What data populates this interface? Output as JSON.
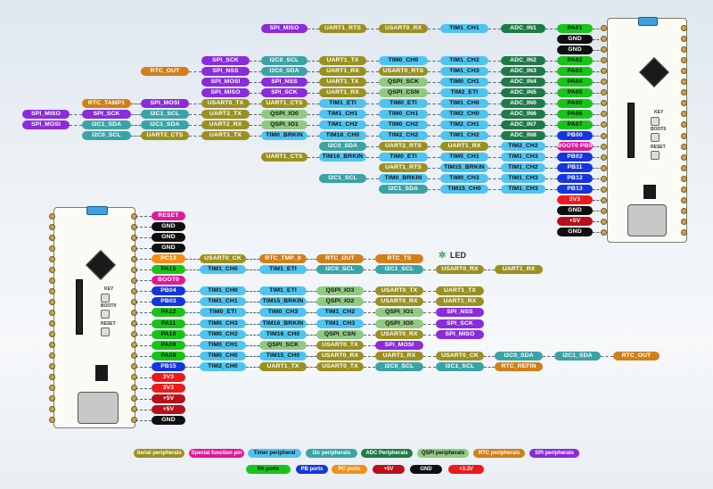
{
  "colors": {
    "serial": "#9a9020",
    "special": "#e0189a",
    "timer": "#4fc4f0",
    "i2c": "#3aa3a6",
    "adc": "#1f7a48",
    "qspi": "#8fca80",
    "rtc": "#d07f1a",
    "spi": "#8b2bdb",
    "pa": "#19c419",
    "pb": "#1535dd",
    "pc": "#f29015",
    "v5": "#b8101a",
    "gnd": "#0f0f0f",
    "v33": "#ec1a1a"
  },
  "board_top": {
    "name": "top-board",
    "button_labels": [
      "KEY",
      "BOOT0",
      "RESET"
    ]
  },
  "board_bottom": {
    "name": "bottom-board",
    "button_labels": [
      "KEY",
      "BOOT0",
      "RESET"
    ],
    "led_label": "LED"
  },
  "top_diagram": {
    "rows": [
      {
        "pin": {
          "text": "PA01",
          "kind": "pa"
        },
        "funcs": [
          {
            "text": "ADC_IN1",
            "kind": "adc"
          },
          {
            "text": "TIM1_CH1",
            "kind": "timer"
          },
          {
            "text": "USART0_RX",
            "kind": "serial"
          },
          {
            "text": "UART1_RTS",
            "kind": "serial"
          },
          {
            "text": "SPI_MISO",
            "kind": "spi"
          }
        ]
      },
      {
        "pin": {
          "text": "GND",
          "kind": "gnd"
        },
        "funcs": []
      },
      {
        "pin": {
          "text": "GND",
          "kind": "gnd"
        },
        "funcs": []
      },
      {
        "pin": {
          "text": "PA02",
          "kind": "pa"
        },
        "funcs": [
          {
            "text": "ADC_IN2",
            "kind": "adc"
          },
          {
            "text": "TIM1_CH2",
            "kind": "timer"
          },
          {
            "text": "TIM0_CH0",
            "kind": "timer"
          },
          {
            "text": "UART1_TX",
            "kind": "serial"
          },
          {
            "text": "I2C0_SCL",
            "kind": "i2c"
          },
          {
            "text": "SPI_SCK",
            "kind": "spi"
          }
        ]
      },
      {
        "pin": {
          "text": "PA03",
          "kind": "pa"
        },
        "funcs": [
          {
            "text": "ADC_IN3",
            "kind": "adc"
          },
          {
            "text": "TIM1_CH3",
            "kind": "timer"
          },
          {
            "text": "USART0_RTS",
            "kind": "serial"
          },
          {
            "text": "UART1_RX",
            "kind": "serial"
          },
          {
            "text": "I2C0_SDA",
            "kind": "i2c"
          },
          {
            "text": "SPI_NSS",
            "kind": "spi"
          },
          {
            "text": "RTC_OUT",
            "kind": "rtc"
          }
        ]
      },
      {
        "pin": {
          "text": "PA04",
          "kind": "pa"
        },
        "funcs": [
          {
            "text": "ADC_IN4",
            "kind": "adc"
          },
          {
            "text": "TIM0_CH1",
            "kind": "timer"
          },
          {
            "text": "QSPI_SCK",
            "kind": "qspi"
          },
          {
            "text": "UART1_TX",
            "kind": "serial"
          },
          {
            "text": "SPI_NSS",
            "kind": "spi"
          },
          {
            "text": "SPI_MOSI",
            "kind": "spi"
          }
        ]
      },
      {
        "pin": {
          "text": "PA05",
          "kind": "pa"
        },
        "funcs": [
          {
            "text": "ADC_IN5",
            "kind": "adc"
          },
          {
            "text": "TIM2_ETI",
            "kind": "timer"
          },
          {
            "text": "QSPI_CSN",
            "kind": "qspi"
          },
          {
            "text": "UART1_RX",
            "kind": "serial"
          },
          {
            "text": "SPI_SCK",
            "kind": "spi"
          },
          {
            "text": "SPI_MISO",
            "kind": "spi"
          }
        ]
      },
      {
        "pin": {
          "text": "PA00",
          "kind": "pa"
        },
        "funcs": [
          {
            "text": "ADC_IN0",
            "kind": "adc"
          },
          {
            "text": "TIM1_CH0",
            "kind": "timer"
          },
          {
            "text": "TIM0_ETI",
            "kind": "timer"
          },
          {
            "text": "TIM1_ETI",
            "kind": "timer"
          },
          {
            "text": "UART1_CTS",
            "kind": "serial"
          },
          {
            "text": "USART0_TX",
            "kind": "serial"
          },
          {
            "text": "SPI_MOSI",
            "kind": "spi"
          },
          {
            "text": "RTC_TAMP1",
            "kind": "rtc"
          }
        ]
      },
      {
        "pin": {
          "text": "PA06",
          "kind": "pa"
        },
        "funcs": [
          {
            "text": "ADC_IN6",
            "kind": "adc"
          },
          {
            "text": "TIM2_CH0",
            "kind": "timer"
          },
          {
            "text": "TIM0_CH1",
            "kind": "timer"
          },
          {
            "text": "TIM1_CH1",
            "kind": "timer"
          },
          {
            "text": "QSPI_IO0",
            "kind": "qspi"
          },
          {
            "text": "UART2_TX",
            "kind": "serial"
          },
          {
            "text": "I2C1_SCL",
            "kind": "i2c"
          },
          {
            "text": "SPI_SCK",
            "kind": "spi"
          },
          {
            "text": "SPI_MISO",
            "kind": "spi"
          }
        ]
      },
      {
        "pin": {
          "text": "PA07",
          "kind": "pa"
        },
        "funcs": [
          {
            "text": "ADC_IN7",
            "kind": "adc"
          },
          {
            "text": "TIM2_CH1",
            "kind": "timer"
          },
          {
            "text": "TIM0_CH2",
            "kind": "timer"
          },
          {
            "text": "TIM1_CH2",
            "kind": "timer"
          },
          {
            "text": "QSPI_IO1",
            "kind": "qspi"
          },
          {
            "text": "UART2_RX",
            "kind": "serial"
          },
          {
            "text": "I2C1_SDA",
            "kind": "i2c"
          },
          {
            "text": "I2C1_SDA",
            "kind": "i2c"
          },
          {
            "text": "SPI_MOSI",
            "kind": "spi"
          }
        ]
      },
      {
        "pin": {
          "text": "PB00",
          "kind": "pb"
        },
        "funcs": [
          {
            "text": "ADC_IN8",
            "kind": "adc"
          },
          {
            "text": "TIM1_CH2",
            "kind": "timer"
          },
          {
            "text": "TIM2_CH2",
            "kind": "timer"
          },
          {
            "text": "TIM16_CH0",
            "kind": "timer"
          },
          {
            "text": "TIM0_BRKIN",
            "kind": "timer"
          },
          {
            "text": "UART1_TX",
            "kind": "serial"
          },
          {
            "text": "UART2_CTS",
            "kind": "serial"
          },
          {
            "text": "I2C0_SCL",
            "kind": "i2c"
          }
        ]
      },
      {
        "pin": {
          "text": "BOOT0 PB01",
          "kind": "special"
        },
        "funcs": [
          {
            "text": "TIM2_CH2",
            "kind": "timer"
          },
          {
            "text": "UART1_RX",
            "kind": "serial"
          },
          {
            "text": "UART2_RTS",
            "kind": "serial"
          },
          {
            "text": "I2C0_SDA",
            "kind": "i2c"
          }
        ]
      },
      {
        "pin": {
          "text": "PB02",
          "kind": "pb"
        },
        "funcs": [
          {
            "text": "TIM1_CH3",
            "kind": "timer"
          },
          {
            "text": "TIM0_CH1",
            "kind": "timer"
          },
          {
            "text": "TIM0_ETI",
            "kind": "timer"
          },
          {
            "text": "TIM16_BRKIN",
            "kind": "timer"
          },
          {
            "text": "UART1_CTS",
            "kind": "serial"
          }
        ]
      },
      {
        "pin": {
          "text": "PB11",
          "kind": "pb"
        },
        "funcs": [
          {
            "text": "TIM1_CH2",
            "kind": "timer"
          },
          {
            "text": "TIM15_BRKIN",
            "kind": "timer"
          },
          {
            "text": "UART1_RTS",
            "kind": "serial"
          }
        ]
      },
      {
        "pin": {
          "text": "PB12",
          "kind": "pb"
        },
        "funcs": [
          {
            "text": "TIM1_CH3",
            "kind": "timer"
          },
          {
            "text": "TIM0_CH3",
            "kind": "timer"
          },
          {
            "text": "TIM0_BRKIN",
            "kind": "timer"
          },
          {
            "text": "I2C1_SCL",
            "kind": "i2c"
          }
        ]
      },
      {
        "pin": {
          "text": "PB13",
          "kind": "pb"
        },
        "funcs": [
          {
            "text": "TIM1_CH3",
            "kind": "timer"
          },
          {
            "text": "TIM15_CH0",
            "kind": "timer"
          },
          {
            "text": "I2C1_SDA",
            "kind": "i2c"
          }
        ]
      },
      {
        "pin": {
          "text": "3V3",
          "kind": "v33"
        },
        "funcs": []
      },
      {
        "pin": {
          "text": "GND",
          "kind": "gnd"
        },
        "funcs": []
      },
      {
        "pin": {
          "text": "+5V",
          "kind": "v5"
        },
        "funcs": []
      },
      {
        "pin": {
          "text": "GND",
          "kind": "gnd"
        },
        "funcs": []
      }
    ]
  },
  "bottom_diagram": {
    "rows": [
      {
        "pin": {
          "text": "RESET",
          "kind": "special"
        },
        "funcs": []
      },
      {
        "pin": {
          "text": "GND",
          "kind": "gnd"
        },
        "funcs": []
      },
      {
        "pin": {
          "text": "GND",
          "kind": "gnd"
        },
        "funcs": []
      },
      {
        "pin": {
          "text": "GND",
          "kind": "gnd"
        },
        "funcs": []
      },
      {
        "pin": {
          "text": "PC13",
          "kind": "pc"
        },
        "funcs": [
          {
            "text": "USART0_CK",
            "kind": "serial"
          },
          {
            "text": "RTC_TMP_0",
            "kind": "rtc"
          },
          {
            "text": "RTC_OUT",
            "kind": "rtc"
          },
          {
            "text": "RTC_TS",
            "kind": "rtc"
          }
        ]
      },
      {
        "pin": {
          "text": "PA15",
          "kind": "pa"
        },
        "funcs": [
          {
            "text": "TIM1_CH0",
            "kind": "timer"
          },
          {
            "text": "TIM1_ETI",
            "kind": "timer"
          },
          {
            "text": "I2C0_SCL",
            "kind": "i2c"
          },
          {
            "text": "I2C1_SCL",
            "kind": "i2c"
          },
          {
            "text": "USART0_RX",
            "kind": "serial"
          },
          {
            "text": "UART1_RX",
            "kind": "serial"
          }
        ]
      },
      {
        "pin": {
          "text": "BOOT0",
          "kind": "special"
        },
        "funcs": []
      },
      {
        "pin": {
          "text": "PB04",
          "kind": "pb"
        },
        "funcs": [
          {
            "text": "TIM1_CH0",
            "kind": "timer"
          },
          {
            "text": "TIM1_ETI",
            "kind": "timer"
          },
          {
            "text": "QSPI_IO3",
            "kind": "qspi"
          },
          {
            "text": "USART0_TX",
            "kind": "serial"
          },
          {
            "text": "UART1_TX",
            "kind": "serial"
          }
        ]
      },
      {
        "pin": {
          "text": "PB03",
          "kind": "pb"
        },
        "funcs": [
          {
            "text": "TIM1_CH1",
            "kind": "timer"
          },
          {
            "text": "TIM15_BRKIN",
            "kind": "timer"
          },
          {
            "text": "QSPI_IO2",
            "kind": "qspi"
          },
          {
            "text": "USART0_RX",
            "kind": "serial"
          },
          {
            "text": "UART1_RX",
            "kind": "serial"
          }
        ]
      },
      {
        "pin": {
          "text": "PA12",
          "kind": "pa"
        },
        "funcs": [
          {
            "text": "TIM0_ETI",
            "kind": "timer"
          },
          {
            "text": "TIM0_CH3",
            "kind": "timer"
          },
          {
            "text": "TIM1_CH2",
            "kind": "timer"
          },
          {
            "text": "QSPI_IO1",
            "kind": "qspi"
          },
          {
            "text": "SPI_NSS",
            "kind": "spi"
          }
        ]
      },
      {
        "pin": {
          "text": "PA11",
          "kind": "pa"
        },
        "funcs": [
          {
            "text": "TIM0_CH3",
            "kind": "timer"
          },
          {
            "text": "TIM16_BRKIN",
            "kind": "timer"
          },
          {
            "text": "TIM1_CH3",
            "kind": "timer"
          },
          {
            "text": "QSPI_IO0",
            "kind": "qspi"
          },
          {
            "text": "SPI_SCK",
            "kind": "spi"
          }
        ]
      },
      {
        "pin": {
          "text": "PA10",
          "kind": "pa"
        },
        "funcs": [
          {
            "text": "TIM0_CH2",
            "kind": "timer"
          },
          {
            "text": "TIM16_CH0",
            "kind": "timer"
          },
          {
            "text": "QSPI_CSN",
            "kind": "qspi"
          },
          {
            "text": "USART0_RX",
            "kind": "serial"
          },
          {
            "text": "SPI_MISO",
            "kind": "spi"
          }
        ]
      },
      {
        "pin": {
          "text": "PA09",
          "kind": "pa"
        },
        "funcs": [
          {
            "text": "TIM0_CH1",
            "kind": "timer"
          },
          {
            "text": "QSPI_SCK",
            "kind": "qspi"
          },
          {
            "text": "USART0_TX",
            "kind": "serial"
          },
          {
            "text": "SPI_MOSI",
            "kind": "spi"
          }
        ]
      },
      {
        "pin": {
          "text": "PA08",
          "kind": "pa"
        },
        "funcs": [
          {
            "text": "TIM0_CH0",
            "kind": "timer"
          },
          {
            "text": "TIM15_CH0",
            "kind": "timer"
          },
          {
            "text": "USART0_RX",
            "kind": "serial"
          },
          {
            "text": "UART1_RX",
            "kind": "serial"
          },
          {
            "text": "USART0_CK",
            "kind": "serial"
          },
          {
            "text": "I2C0_SDA",
            "kind": "i2c"
          },
          {
            "text": "I2C1_SDA",
            "kind": "i2c"
          },
          {
            "text": "RTC_OUT",
            "kind": "rtc"
          }
        ]
      },
      {
        "pin": {
          "text": "PB15",
          "kind": "pb"
        },
        "funcs": [
          {
            "text": "TIM2_CH0",
            "kind": "timer"
          },
          {
            "text": "UART1_TX",
            "kind": "serial"
          },
          {
            "text": "USART0_TX",
            "kind": "serial"
          },
          {
            "text": "I2C0_SCL",
            "kind": "i2c"
          },
          {
            "text": "I2C1_SCL",
            "kind": "i2c"
          },
          {
            "text": "RTC_REFIN",
            "kind": "rtc"
          }
        ]
      },
      {
        "pin": {
          "text": "3V3",
          "kind": "v33"
        },
        "funcs": []
      },
      {
        "pin": {
          "text": "3V3",
          "kind": "v33"
        },
        "funcs": []
      },
      {
        "pin": {
          "text": "+5V",
          "kind": "v5"
        },
        "funcs": []
      },
      {
        "pin": {
          "text": "+5V",
          "kind": "v5"
        },
        "funcs": []
      },
      {
        "pin": {
          "text": "GND",
          "kind": "gnd"
        },
        "funcs": []
      }
    ]
  },
  "legend": {
    "row1": [
      {
        "text": "Serial peripherals",
        "kind": "serial"
      },
      {
        "text": "Special function pin",
        "kind": "special"
      },
      {
        "text": "Timer peripheral",
        "kind": "timer"
      },
      {
        "text": "I2c peripherals",
        "kind": "i2c"
      },
      {
        "text": "ADC Peripherals",
        "kind": "adc"
      },
      {
        "text": "QSPI peripherals",
        "kind": "qspi"
      },
      {
        "text": "RTC peripherals",
        "kind": "rtc"
      },
      {
        "text": "SPI peripherals",
        "kind": "spi"
      }
    ],
    "row2": [
      {
        "text": "PA ports",
        "kind": "pa"
      },
      {
        "text": "PB ports",
        "kind": "pb"
      },
      {
        "text": "PC ports",
        "kind": "pc"
      },
      {
        "text": "+5V",
        "kind": "v5"
      },
      {
        "text": "GND",
        "kind": "gnd"
      },
      {
        "text": "+3.3V",
        "kind": "v33"
      }
    ]
  }
}
